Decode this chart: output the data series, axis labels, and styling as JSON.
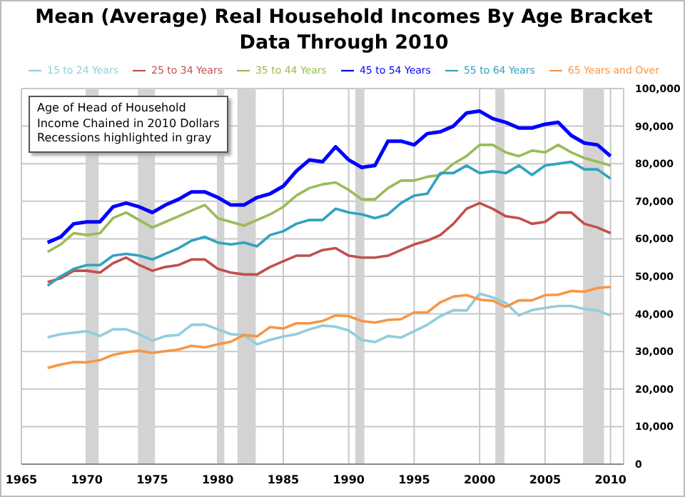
{
  "chart_data": {
    "type": "line",
    "title": "Mean (Average)  Real Household Incomes By Age Bracket",
    "subtitle": "Data Through 2010",
    "x": [
      1967,
      1968,
      1969,
      1970,
      1971,
      1972,
      1973,
      1974,
      1975,
      1976,
      1977,
      1978,
      1979,
      1980,
      1981,
      1982,
      1983,
      1984,
      1985,
      1986,
      1987,
      1988,
      1989,
      1990,
      1991,
      1992,
      1993,
      1994,
      1995,
      1996,
      1997,
      1998,
      1999,
      2000,
      2001,
      2002,
      2003,
      2004,
      2005,
      2006,
      2007,
      2008,
      2009,
      2010
    ],
    "series": [
      {
        "name": "15 to 24 Years",
        "color": "#92cddc",
        "values": [
          33800,
          34600,
          35000,
          35400,
          34100,
          35900,
          35900,
          34600,
          32900,
          34100,
          34400,
          37100,
          37200,
          35900,
          34600,
          34400,
          31900,
          33100,
          34000,
          34600,
          35900,
          36900,
          36600,
          35600,
          33100,
          32500,
          34100,
          33700,
          35400,
          37100,
          39400,
          41000,
          40900,
          45400,
          44400,
          42900,
          39600,
          41000,
          41600,
          42100,
          42100,
          41300,
          40900,
          39600
        ]
      },
      {
        "name": "25 to 34 Years",
        "color": "#c0504d",
        "values": [
          48500,
          49500,
          51500,
          51500,
          51000,
          53500,
          55000,
          53000,
          51500,
          52500,
          53000,
          54500,
          54500,
          52000,
          51000,
          50500,
          50500,
          52500,
          54000,
          55500,
          55500,
          57000,
          57500,
          55500,
          55000,
          55000,
          55500,
          57000,
          58500,
          59500,
          61000,
          64000,
          68000,
          69500,
          68000,
          66000,
          65500,
          64000,
          64500,
          67000,
          67000,
          64000,
          63000,
          61500
        ]
      },
      {
        "name": "35 to 44 Years",
        "color": "#9bbb59",
        "values": [
          56500,
          58500,
          61500,
          61000,
          61500,
          65500,
          67000,
          65000,
          63000,
          64500,
          66000,
          67500,
          69000,
          65500,
          64500,
          63500,
          65000,
          66500,
          68500,
          71500,
          73500,
          74500,
          75000,
          73000,
          70500,
          70500,
          73500,
          75500,
          75500,
          76500,
          77000,
          80000,
          82000,
          85000,
          85000,
          83000,
          82000,
          83500,
          83000,
          85000,
          83000,
          81500,
          80500,
          79500
        ]
      },
      {
        "name": "45 to 54 Years",
        "color": "#0000ff",
        "values": [
          59000,
          60500,
          64000,
          64500,
          64500,
          68500,
          69500,
          68500,
          67000,
          69000,
          70500,
          72500,
          72500,
          71000,
          69000,
          69000,
          71000,
          72000,
          74000,
          78000,
          81000,
          80500,
          84500,
          81000,
          79000,
          79500,
          86000,
          86000,
          85000,
          88000,
          88500,
          90000,
          93500,
          94000,
          92000,
          91000,
          89500,
          89500,
          90500,
          91000,
          87500,
          85500,
          85000,
          82000
        ]
      },
      {
        "name": "55 to 64 Years",
        "color": "#31a2be",
        "values": [
          47500,
          50000,
          52000,
          53000,
          53000,
          55500,
          56000,
          55500,
          54500,
          56000,
          57500,
          59500,
          60500,
          59000,
          58500,
          59000,
          58000,
          61000,
          62000,
          64000,
          65000,
          65000,
          68000,
          67000,
          66500,
          65500,
          66500,
          69500,
          71500,
          72000,
          77500,
          77500,
          79500,
          77500,
          78000,
          77500,
          79500,
          77000,
          79500,
          80000,
          80500,
          78500,
          78500,
          76000
        ]
      },
      {
        "name": "65 Years and Over",
        "color": "#f79646",
        "values": [
          25600,
          26500,
          27200,
          27100,
          27700,
          29100,
          29800,
          30200,
          29600,
          30100,
          30500,
          31500,
          31100,
          31900,
          32600,
          34400,
          34000,
          36500,
          36100,
          37500,
          37500,
          38100,
          39600,
          39400,
          38100,
          37700,
          38400,
          38600,
          40400,
          40400,
          43100,
          44600,
          45000,
          43800,
          43500,
          41900,
          43600,
          43600,
          45000,
          45100,
          46100,
          45900,
          46900,
          47200
        ]
      }
    ],
    "xlim": [
      1965,
      2011
    ],
    "xticks": [
      1965,
      1970,
      1975,
      1980,
      1985,
      1990,
      1995,
      2000,
      2005,
      2010
    ],
    "ylim": [
      0,
      100000
    ],
    "yticks": [
      0,
      {
        "value": 10000,
        "label": "10,000"
      },
      {
        "value": 20000,
        "label": "20,000"
      },
      {
        "value": 30000,
        "label": "30,000"
      },
      {
        "value": 40000,
        "label": "40,000"
      },
      {
        "value": 50000,
        "label": "50,000"
      },
      {
        "value": 60000,
        "label": "60,000"
      },
      {
        "value": 70000,
        "label": "70,000"
      },
      {
        "value": 80000,
        "label": "80,000"
      },
      {
        "value": 90000,
        "label": "90,000"
      },
      {
        "value": 100000,
        "label": "100,000"
      }
    ],
    "bands": [
      {
        "axis": "x",
        "from": 1969.9,
        "to": 1970.9,
        "color": "#d3d3d3"
      },
      {
        "axis": "x",
        "from": 1973.9,
        "to": 1975.2,
        "color": "#d3d3d3"
      },
      {
        "axis": "x",
        "from": 1980.0,
        "to": 1980.5,
        "color": "#d3d3d3"
      },
      {
        "axis": "x",
        "from": 1981.5,
        "to": 1982.9,
        "color": "#d3d3d3"
      },
      {
        "axis": "x",
        "from": 1990.5,
        "to": 1991.2,
        "color": "#d3d3d3"
      },
      {
        "axis": "x",
        "from": 2001.2,
        "to": 2001.9,
        "color": "#d3d3d3"
      },
      {
        "axis": "x",
        "from": 2007.9,
        "to": 2009.5,
        "color": "#d3d3d3"
      }
    ],
    "annotations": [
      "Age of Head of Household",
      "Income Chained in 2010 Dollars",
      "Recessions highlighted in gray"
    ],
    "grid": true,
    "legend": "top"
  }
}
